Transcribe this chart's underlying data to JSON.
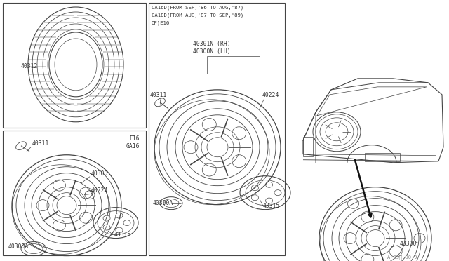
{
  "bg_color": "#ffffff",
  "line_color": "#444444",
  "text_color": "#333333",
  "fs_label": 5.8,
  "fs_header": 5.2,
  "fs_watermark": 5.0,
  "header_lines": [
    "CA16D(FROM SEP,'86 TO AUG,'87)",
    "CA18D(FROM AUG,'87 TO SEP,'89)",
    "OP)E16"
  ],
  "watermark": "A·33ᴀ 00·9"
}
